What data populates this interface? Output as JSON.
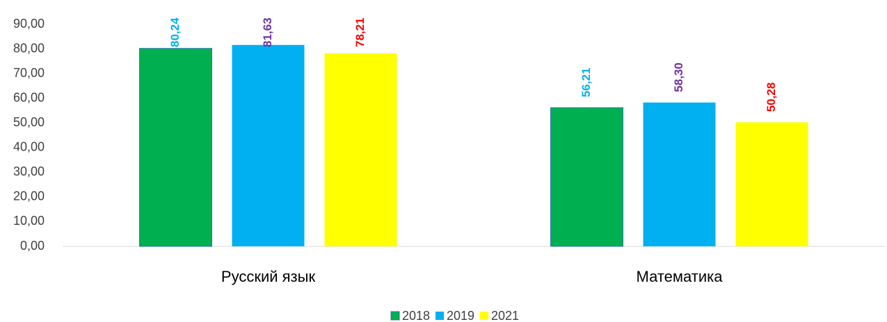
{
  "chart_data": {
    "type": "bar",
    "categories": [
      "Русский язык",
      "Математика"
    ],
    "series": [
      {
        "name": "2018",
        "color": "#00b050",
        "label_color": "#00b0f0",
        "values": [
          80.24,
          56.21
        ],
        "value_labels": [
          "80,24",
          "56,21"
        ]
      },
      {
        "name": "2019",
        "color": "#00b0f0",
        "label_color": "#7030a0",
        "values": [
          81.63,
          58.3
        ],
        "value_labels": [
          "81,63",
          "58,30"
        ]
      },
      {
        "name": "2021",
        "color": "#ffff00",
        "label_color": "#ff0000",
        "values": [
          78.21,
          50.28
        ],
        "value_labels": [
          "78,21",
          "50,28"
        ]
      }
    ],
    "ylim": [
      0,
      90
    ],
    "yticks": [
      {
        "value": 0,
        "label": "0,00"
      },
      {
        "value": 10,
        "label": "10,00"
      },
      {
        "value": 20,
        "label": "20,00"
      },
      {
        "value": 30,
        "label": "30,00"
      },
      {
        "value": 40,
        "label": "40,00"
      },
      {
        "value": 50,
        "label": "50,00"
      },
      {
        "value": 60,
        "label": "60,00"
      },
      {
        "value": 70,
        "label": "70,00"
      },
      {
        "value": 80,
        "label": "80,00"
      },
      {
        "value": 90,
        "label": "90,00"
      }
    ],
    "grid": false,
    "legend": "bottom"
  }
}
